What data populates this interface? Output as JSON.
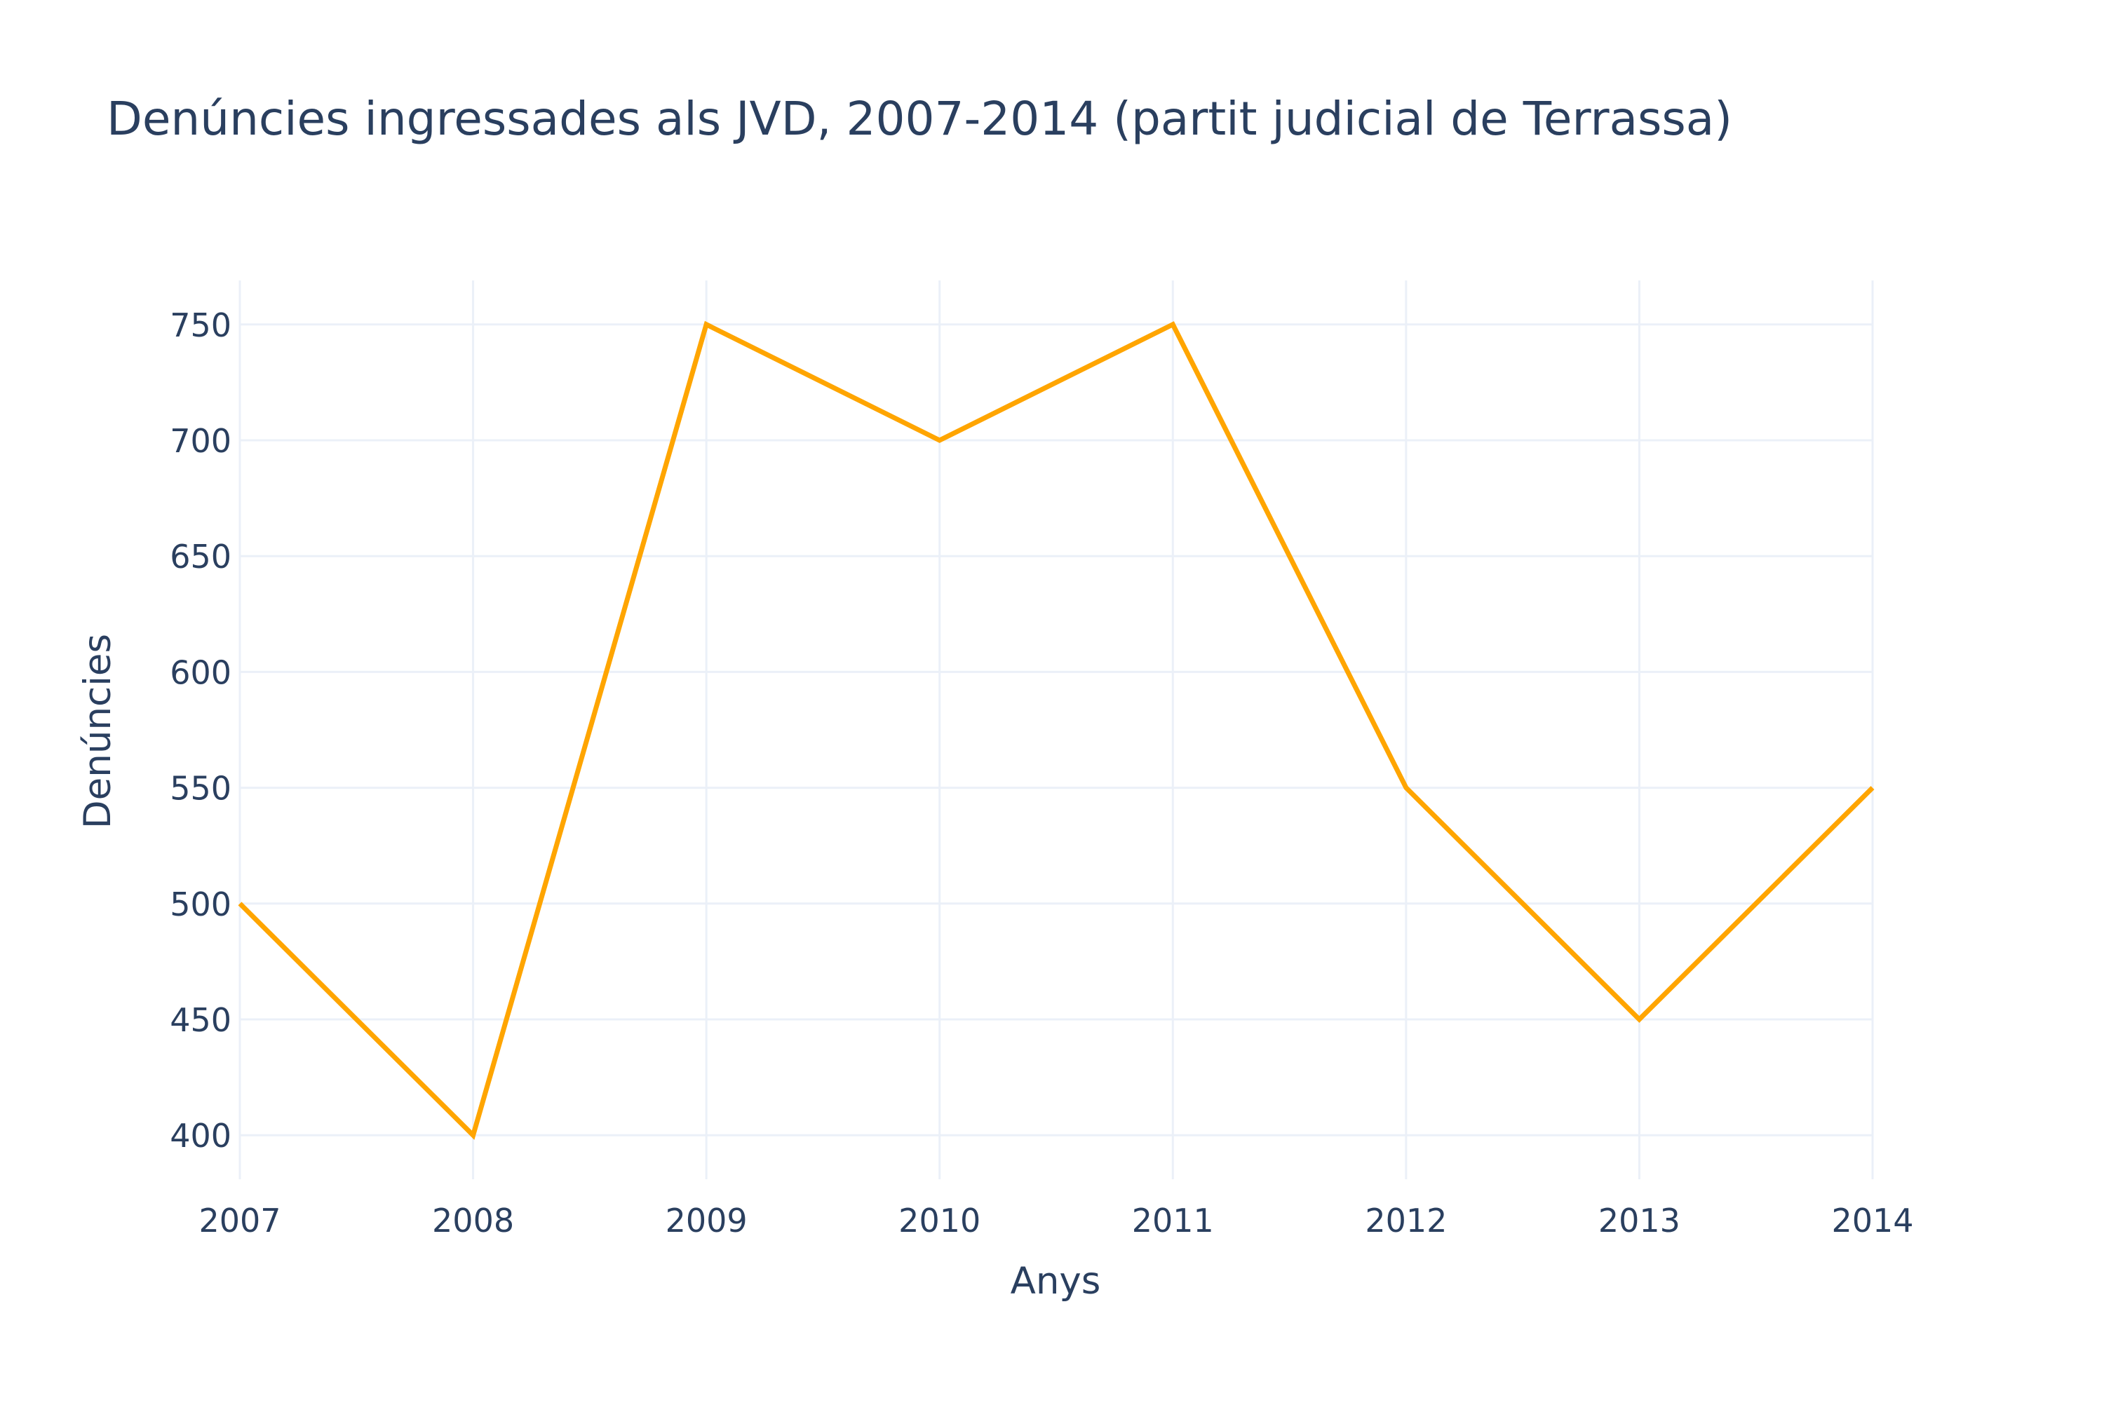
{
  "chart_data": {
    "type": "line",
    "title": "Denúncies ingressades als JVD, 2007-2014 (partit judicial de Terrassa)",
    "xlabel": "Anys",
    "ylabel": "Denúncies",
    "x": [
      2007,
      2008,
      2009,
      2010,
      2011,
      2012,
      2013,
      2014
    ],
    "series": [
      {
        "values": [
          500,
          400,
          750,
          700,
          750,
          550,
          450,
          550
        ],
        "color": "#ffa500"
      }
    ],
    "xlim": [
      2007,
      2014
    ],
    "ylim": [
      381,
      769
    ],
    "xticks": [
      "2007",
      "2008",
      "2009",
      "2010",
      "2011",
      "2012",
      "2013",
      "2014"
    ],
    "yticks": [
      "400",
      "450",
      "500",
      "550",
      "600",
      "650",
      "700",
      "750"
    ],
    "grid": true,
    "legend": false
  }
}
